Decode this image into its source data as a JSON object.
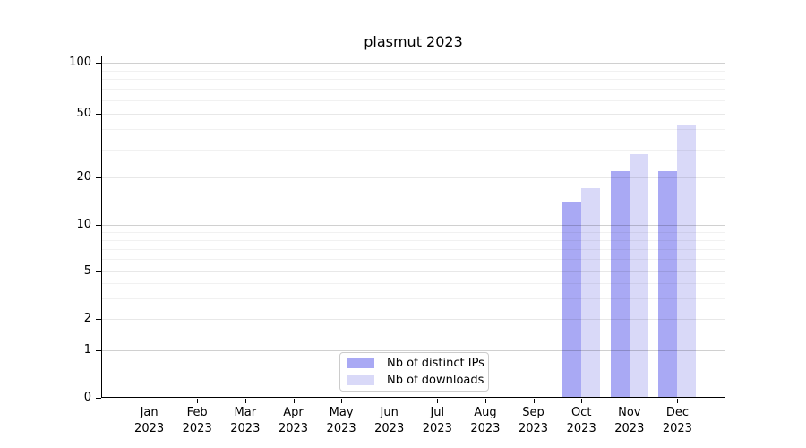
{
  "title": "plasmut 2023",
  "legend": {
    "items": [
      {
        "label": "Nb of distinct IPs",
        "color": "#a9a9f4"
      },
      {
        "label": "Nb of downloads",
        "color": "#d9d9f8"
      }
    ]
  },
  "chart_data": {
    "type": "bar",
    "title": "plasmut 2023",
    "categories": [
      "Jan 2023",
      "Feb 2023",
      "Mar 2023",
      "Apr 2023",
      "May 2023",
      "Jun 2023",
      "Jul 2023",
      "Aug 2023",
      "Sep 2023",
      "Oct 2023",
      "Nov 2023",
      "Dec 2023"
    ],
    "months": [
      "Jan",
      "Feb",
      "Mar",
      "Apr",
      "May",
      "Jun",
      "Jul",
      "Aug",
      "Sep",
      "Oct",
      "Nov",
      "Dec"
    ],
    "year": "2023",
    "series": [
      {
        "name": "Nb of distinct IPs",
        "color": "#a9a9f4",
        "values": [
          null,
          null,
          null,
          null,
          null,
          null,
          null,
          null,
          null,
          14,
          22,
          22
        ]
      },
      {
        "name": "Nb of downloads",
        "color": "#d9d9f8",
        "values": [
          null,
          null,
          null,
          null,
          null,
          null,
          null,
          null,
          null,
          17,
          28,
          43
        ]
      }
    ],
    "y_axis": {
      "scale": "log-like (log above 1, linear 0-1)",
      "tick_values": [
        0,
        1,
        2,
        5,
        10,
        20,
        50,
        100
      ],
      "major_grid_values": [
        1,
        10,
        100
      ],
      "labeled_minor_grid_values": [
        2,
        5,
        20,
        50
      ],
      "minor_grid_values": [
        3,
        4,
        6,
        7,
        8,
        9,
        30,
        40,
        60,
        70,
        80,
        90
      ],
      "ylim": [
        0,
        110
      ]
    },
    "grid": "horizontal, major + minor",
    "legend_position": "lower center",
    "colors": {
      "major_grid": "#d0d0d0",
      "labeled_minor_grid": "#e8e8e8",
      "minor_grid": "#f1f1f1",
      "axis": "#000000"
    }
  }
}
